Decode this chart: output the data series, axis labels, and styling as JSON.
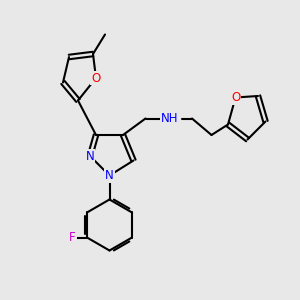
{
  "bg_color": "#e8e8e8",
  "bond_color": "#000000",
  "N_color": "#0000ff",
  "O_color": "#ff0000",
  "F_color": "#cc00cc",
  "NH_color": "#0000ff",
  "line_width": 1.5,
  "font_size": 8.5,
  "fig_width": 3.0,
  "fig_height": 3.0,
  "dpi": 100,
  "xlim": [
    0,
    10
  ],
  "ylim": [
    0,
    10
  ]
}
